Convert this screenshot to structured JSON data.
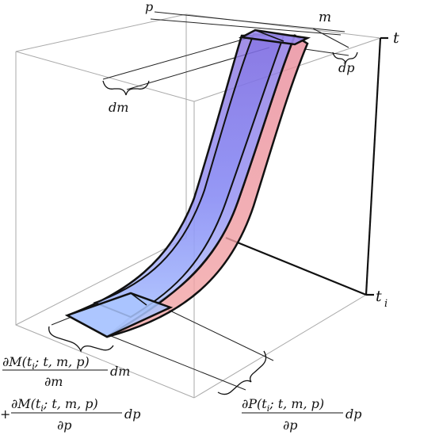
{
  "labels": {
    "p": "p",
    "m": "m",
    "t": "t",
    "t_i_base": "t",
    "t_i_sub": "i",
    "dm": "dm",
    "dp": "dp",
    "left_expr": {
      "line1_num": "∂M(t",
      "line1_sub": "i",
      "line1_num_rest": "; t, m, p)",
      "line1_den": "∂m",
      "line1_tail": "dm",
      "plus": "+",
      "line2_num": "∂M(t",
      "line2_sub": "i",
      "line2_num_rest": "; t, m, p)",
      "line2_den": "∂p",
      "line2_tail": "dp"
    },
    "right_expr": {
      "num": "∂P(t",
      "num_sub": "i",
      "num_rest": "; t, m, p)",
      "den": "∂p",
      "tail": "dp"
    }
  },
  "colors": {
    "blue_surface": "#7b74e8",
    "red_surface": "#e88a9a",
    "light_blue": "#a9c4ff",
    "edge": "#111111",
    "box": "#9a9a9a"
  }
}
